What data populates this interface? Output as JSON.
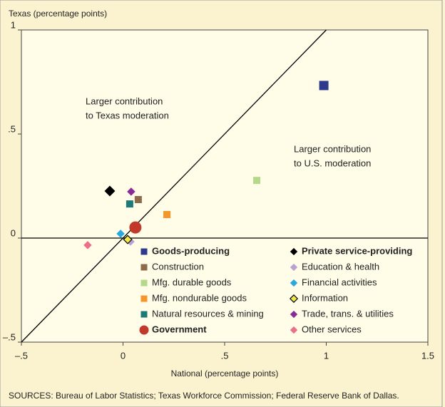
{
  "chart_data": {
    "type": "scatter",
    "y_axis_label": "Texas (percentage points)",
    "x_axis_label": "National (percentage points)",
    "source": "SOURCES: Bureau of Labor Statistics; Texas Workforce Commission; Federal Reserve Bank of Dallas.",
    "annotations": [
      {
        "lines": [
          "Larger contribution",
          "to Texas moderation"
        ]
      },
      {
        "lines": [
          "Larger contribution",
          "to U.S. moderation"
        ]
      }
    ],
    "xlim": [
      -0.5,
      1.5
    ],
    "ylim": [
      -0.5,
      1
    ],
    "xticks": [
      {
        "value": -0.5,
        "label": "–.5"
      },
      0,
      {
        "value": 0.5,
        "label": ".5"
      },
      1,
      1.5
    ],
    "yticks": [
      {
        "value": -0.5,
        "label": "–.5"
      },
      0,
      {
        "value": 0.5,
        "label": ".5"
      },
      1
    ],
    "series": [
      {
        "name": "Goods-producing",
        "color": "#2e3a8c",
        "marker": "square",
        "emphasis": true,
        "x": [
          0.988
        ],
        "values": [
          0.733
        ]
      },
      {
        "name": "Construction",
        "color": "#8c6a4a",
        "marker": "square",
        "x": [
          0.075
        ],
        "values": [
          0.185
        ]
      },
      {
        "name": "Mfg. durable goods",
        "color": "#b5d88a",
        "marker": "square",
        "x": [
          0.658
        ],
        "values": [
          0.277
        ]
      },
      {
        "name": "Mfg. nondurable goods",
        "color": "#f4962a",
        "marker": "square",
        "x": [
          0.216
        ],
        "values": [
          0.113
        ]
      },
      {
        "name": "Natural resources & mining",
        "color": "#1e7a78",
        "marker": "square",
        "x": [
          0.033
        ],
        "values": [
          0.164
        ]
      },
      {
        "name": "Government",
        "color": "#c0392b",
        "marker": "circle",
        "emphasis": true,
        "x": [
          0.061
        ],
        "values": [
          0.051
        ]
      },
      {
        "name": "Private service-providing",
        "color": "#000000",
        "marker": "diamond",
        "emphasis": true,
        "x": [
          -0.065
        ],
        "values": [
          0.226
        ]
      },
      {
        "name": "Education & health",
        "color": "#b9a2d2",
        "marker": "diamond",
        "x": [
          0.037
        ],
        "values": [
          -0.017
        ]
      },
      {
        "name": "Financial activities",
        "color": "#2aa8e0",
        "marker": "diamond",
        "x": [
          -0.012
        ],
        "values": [
          0.021
        ]
      },
      {
        "name": "Information",
        "color": "#f2e84a",
        "marker": "diamond-outline",
        "x": [
          0.023
        ],
        "values": [
          -0.007
        ]
      },
      {
        "name": "Trade, trans. & utilities",
        "color": "#8a2c96",
        "marker": "diamond",
        "x": [
          0.04
        ],
        "values": [
          0.223
        ]
      },
      {
        "name": "Other services",
        "color": "#ec6f8a",
        "marker": "diamond",
        "x": [
          -0.174
        ],
        "values": [
          -0.034
        ]
      }
    ]
  }
}
